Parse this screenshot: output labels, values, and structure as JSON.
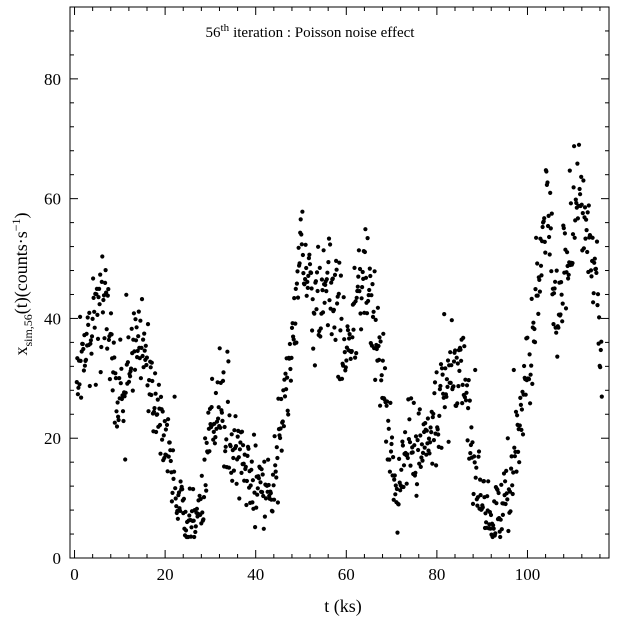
{
  "chart_data": {
    "type": "scatter",
    "title": "",
    "annotation": {
      "number": "56",
      "suffix": "th",
      "rest": "iteration : Poisson  noise effect"
    },
    "xlabel": "t (ks)",
    "ylabel": {
      "main": "x",
      "sub": "sim,56",
      "mid": "(t)(counts·s",
      "sup": "−1",
      "end": ")"
    },
    "xlim": [
      -1,
      118
    ],
    "ylim": [
      0,
      92
    ],
    "x_ticks": [
      0,
      20,
      40,
      60,
      80,
      100
    ],
    "y_ticks": [
      0,
      20,
      40,
      60,
      80
    ],
    "x_minor_step": 4,
    "y_minor_step": 4,
    "grid": false,
    "marker_color": "#000000",
    "series": [
      {
        "sampling": {
          "x_start": 0.5,
          "x_end": 116.5,
          "step": 0.12
        },
        "trend": [
          [
            0.5,
            31
          ],
          [
            2,
            35
          ],
          [
            4,
            38
          ],
          [
            6,
            43
          ],
          [
            7.5,
            44
          ],
          [
            8.5,
            31
          ],
          [
            9.5,
            25
          ],
          [
            11,
            26
          ],
          [
            12,
            33
          ],
          [
            14,
            33
          ],
          [
            16,
            33
          ],
          [
            17,
            26
          ],
          [
            19,
            22
          ],
          [
            21,
            18
          ],
          [
            22,
            12
          ],
          [
            23.5,
            7
          ],
          [
            25,
            5
          ],
          [
            26.5,
            5
          ],
          [
            28,
            10
          ],
          [
            29.5,
            18
          ],
          [
            30.5,
            26
          ],
          [
            32,
            25
          ],
          [
            34,
            20
          ],
          [
            36,
            16
          ],
          [
            38,
            15
          ],
          [
            40,
            12
          ],
          [
            42,
            11
          ],
          [
            44,
            10
          ],
          [
            45,
            18
          ],
          [
            46,
            24
          ],
          [
            47.5,
            33
          ],
          [
            49,
            42
          ],
          [
            50,
            52
          ],
          [
            51,
            46
          ],
          [
            53,
            40
          ],
          [
            55,
            46
          ],
          [
            56.5,
            47
          ],
          [
            58,
            40
          ],
          [
            59.5,
            35
          ],
          [
            61,
            34
          ],
          [
            62.5,
            44
          ],
          [
            64,
            49
          ],
          [
            65.5,
            42
          ],
          [
            67,
            37
          ],
          [
            68.5,
            28
          ],
          [
            70,
            18
          ],
          [
            71,
            10
          ],
          [
            72.5,
            14
          ],
          [
            74,
            17
          ],
          [
            76,
            19
          ],
          [
            78,
            21
          ],
          [
            80,
            24
          ],
          [
            82,
            28
          ],
          [
            84,
            33
          ],
          [
            85.5,
            35
          ],
          [
            86.5,
            28
          ],
          [
            88,
            15
          ],
          [
            89.5,
            10
          ],
          [
            91,
            8
          ],
          [
            93,
            7
          ],
          [
            95,
            9
          ],
          [
            96.5,
            13
          ],
          [
            97.5,
            20
          ],
          [
            99,
            27
          ],
          [
            100.5,
            33
          ],
          [
            102,
            42
          ],
          [
            103.5,
            54
          ],
          [
            104.5,
            60
          ],
          [
            106,
            43
          ],
          [
            107.5,
            42
          ],
          [
            109,
            52
          ],
          [
            110.5,
            55
          ],
          [
            111.5,
            62
          ],
          [
            113,
            55
          ],
          [
            114.5,
            50
          ],
          [
            115.5,
            40
          ],
          [
            116.5,
            32
          ]
        ]
      }
    ]
  }
}
